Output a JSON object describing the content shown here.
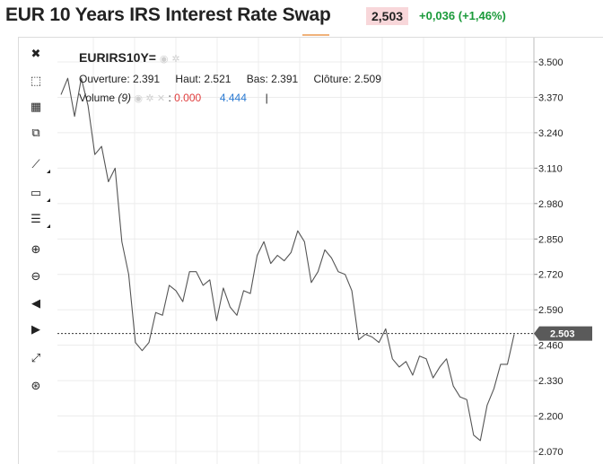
{
  "header": {
    "title": "EUR 10 Years IRS Interest Rate Swap",
    "price": "2,503",
    "change": "+0,036 (+1,46%)",
    "price_bg": "#f8d7da",
    "change_color": "#1a9a3a"
  },
  "toolbar": {
    "items": [
      {
        "icon": "close-icon",
        "glyph": "✖",
        "has_submenu": false
      },
      {
        "icon": "select-cursor-icon",
        "glyph": "⬚",
        "has_submenu": false
      },
      {
        "icon": "crosshair-icon",
        "glyph": "▦",
        "has_submenu": false
      },
      {
        "icon": "copy-icon",
        "glyph": "⧉",
        "has_submenu": false
      },
      {
        "icon": "trend-line-icon",
        "glyph": "⟋",
        "has_submenu": true
      },
      {
        "icon": "rectangle-icon",
        "glyph": "▭",
        "has_submenu": true
      },
      {
        "icon": "fibonacci-lines-icon",
        "glyph": "☰",
        "has_submenu": true
      },
      {
        "icon": "zoom-in-icon",
        "glyph": "⊕",
        "has_submenu": false
      },
      {
        "icon": "zoom-out-icon",
        "glyph": "⊖",
        "has_submenu": false
      },
      {
        "icon": "scroll-left-icon",
        "glyph": "◀",
        "has_submenu": false
      },
      {
        "icon": "scroll-right-icon",
        "glyph": "▶",
        "has_submenu": false
      },
      {
        "icon": "zoom-reset-icon",
        "glyph": "⤢",
        "has_submenu": false
      },
      {
        "icon": "zoom-fit-icon",
        "glyph": "⊛",
        "has_submenu": false
      }
    ]
  },
  "legend": {
    "symbol": "EURIRS10Y=",
    "open_label": "Ouverture: 2.391",
    "high_label": "Haut: 2.521",
    "low_label": "Bas: 2.391",
    "close_label": "Clôture: 2.509",
    "volume_label": "Volume",
    "volume_period": "(9)",
    "volume_sep": ":",
    "volume_value": "0.000",
    "volume_ma": "4.444",
    "cursor": "|",
    "eye_icon": "eye-icon",
    "gear_icon": "gear-icon",
    "close_icon": "close-icon"
  },
  "chart_data": {
    "type": "line",
    "title": "",
    "xlabel": "",
    "ylabel": "",
    "ylim": [
      2.05,
      3.55
    ],
    "yticks": [
      "3.500",
      "3.370",
      "3.240",
      "3.110",
      "2.980",
      "2.850",
      "2.720",
      "2.590",
      "2.460",
      "2.330",
      "2.200",
      "2.070"
    ],
    "grid": true,
    "last_value": "2.503",
    "last_value_line": 2.503,
    "series": [
      {
        "color": "#555555",
        "values": [
          3.38,
          3.44,
          3.3,
          3.44,
          3.34,
          3.16,
          3.19,
          3.06,
          3.11,
          2.84,
          2.72,
          2.47,
          2.44,
          2.47,
          2.58,
          2.57,
          2.68,
          2.66,
          2.62,
          2.73,
          2.73,
          2.68,
          2.7,
          2.55,
          2.67,
          2.6,
          2.57,
          2.66,
          2.65,
          2.79,
          2.84,
          2.76,
          2.79,
          2.77,
          2.8,
          2.88,
          2.84,
          2.69,
          2.73,
          2.81,
          2.78,
          2.73,
          2.72,
          2.66,
          2.48,
          2.5,
          2.49,
          2.47,
          2.52,
          2.41,
          2.38,
          2.4,
          2.35,
          2.42,
          2.41,
          2.34,
          2.38,
          2.41,
          2.31,
          2.27,
          2.26,
          2.13,
          2.11,
          2.24,
          2.3,
          2.39,
          2.39,
          2.5
        ]
      }
    ]
  }
}
